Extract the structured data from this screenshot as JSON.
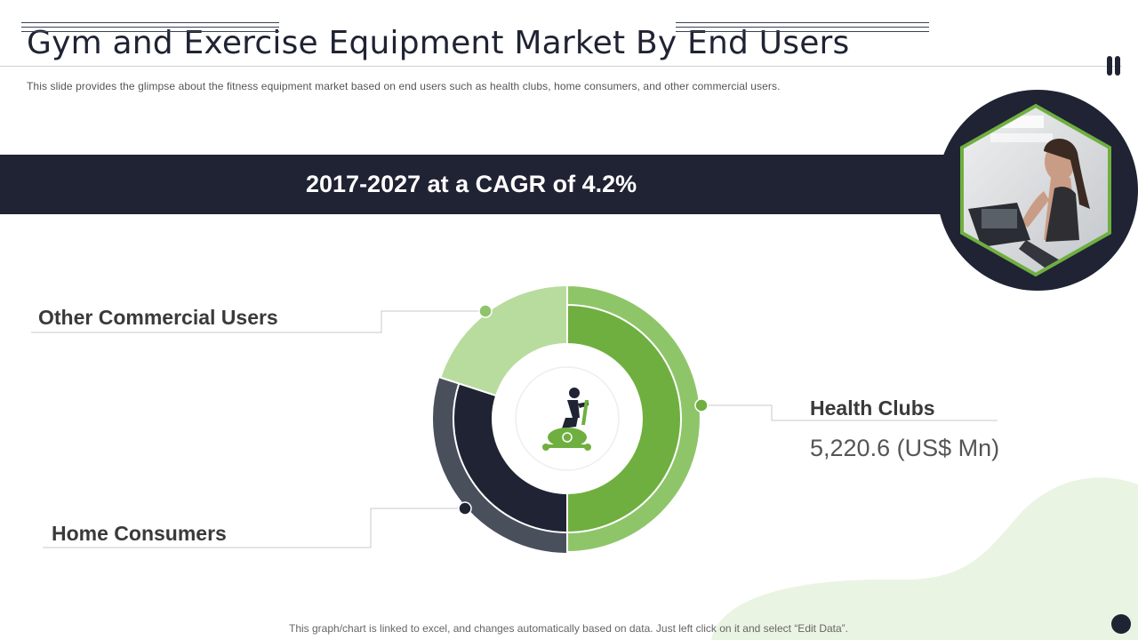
{
  "slide": {
    "title": "Gym and Exercise Equipment Market By End Users",
    "subtitle": "This slide provides  the glimpse about the fitness equipment market based on end users such as health clubs, home consumers, and other commercial users.",
    "banner": "2017-2027 at a CAGR of 4.2%",
    "footnote": "This graph/chart is linked to excel,  and changes automatically based on data. Just left click on it and select “Edit Data”.",
    "health_clubs_value": "5,220.6 (US$ Mn)"
  },
  "colors": {
    "dark": "#1f2333",
    "green": "#6faf40",
    "light_green": "#b8dc9e",
    "pale_green": "#eaf4e2"
  },
  "chart_data": {
    "type": "pie",
    "style": "donut",
    "categories": [
      "Health Clubs",
      "Home Consumers",
      "Other Commercial Users"
    ],
    "values": [
      50,
      30,
      20
    ],
    "colors": [
      "#6faf40",
      "#1f2333",
      "#b8dc9e"
    ],
    "center_icon": "exercise-bike-icon"
  }
}
